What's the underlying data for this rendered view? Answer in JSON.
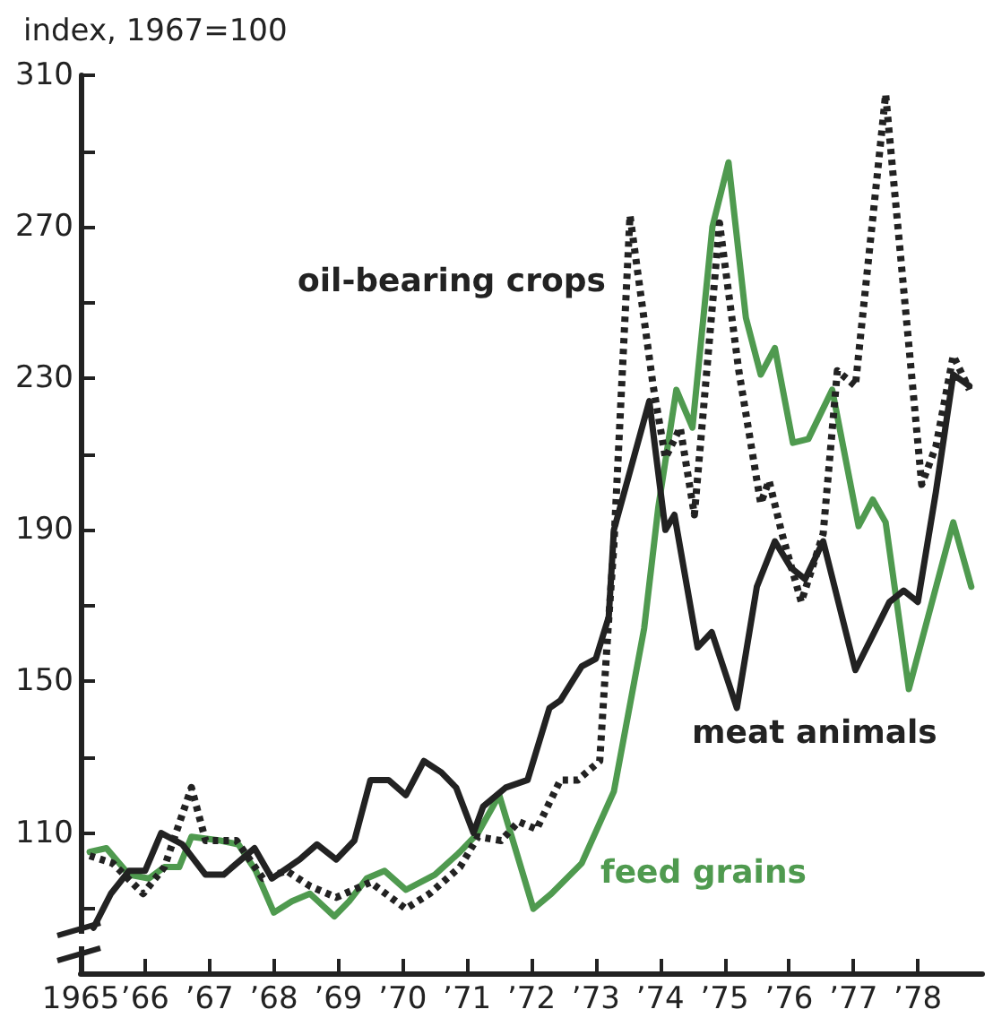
{
  "chart_data": {
    "type": "line",
    "ylabel": "index, 1967=100",
    "xlim": [
      1965,
      1979
    ],
    "xticks": [
      1965,
      {
        "value": 1966,
        "label": "’66"
      },
      {
        "value": 1967,
        "label": "’67"
      },
      {
        "value": 1968,
        "label": "’68"
      },
      {
        "value": 1969,
        "label": "’69"
      },
      {
        "value": 1970,
        "label": "’70"
      },
      {
        "value": 1971,
        "label": "’71"
      },
      {
        "value": 1972,
        "label": "’72"
      },
      {
        "value": 1973,
        "label": "’73"
      },
      {
        "value": 1974,
        "label": "’74"
      },
      {
        "value": 1975,
        "label": "’75"
      },
      {
        "value": 1976,
        "label": "’76"
      },
      {
        "value": 1977,
        "label": "’77"
      },
      {
        "value": 1978,
        "label": "’78"
      }
    ],
    "ylim": [
      73,
      310
    ],
    "yticks": [
      {
        "value": 90,
        "label": null
      },
      110,
      {
        "value": 130,
        "label": null
      },
      150,
      {
        "value": 170,
        "label": null
      },
      190,
      {
        "value": 210,
        "label": null
      },
      230,
      {
        "value": 250,
        "label": null
      },
      270,
      {
        "value": 290,
        "label": null
      },
      310
    ],
    "grid": false,
    "legend": false,
    "marker": "none",
    "series": [
      {
        "name": "oil-bearing crops",
        "color": "#222222",
        "line_style": "dotted",
        "x": [
          1965.14,
          1965.5,
          1965.97,
          1966.3,
          1966.72,
          1966.94,
          1967.42,
          1967.83,
          1968.2,
          1968.56,
          1968.97,
          1969.5,
          1970.05,
          1970.42,
          1970.89,
          1971.17,
          1971.53,
          1971.8,
          1972.08,
          1972.45,
          1972.72,
          1973.06,
          1973.19,
          1973.28,
          1973.53,
          1973.89,
          1974.08,
          1974.31,
          1974.53,
          1974.92,
          1975.22,
          1975.56,
          1975.69,
          1975.89,
          1976.19,
          1976.53,
          1976.75,
          1977.03,
          1977.5,
          1978.06,
          1978.28,
          1978.55,
          1978.8
        ],
        "values": [
          104,
          102,
          94,
          101,
          122,
          108,
          108,
          98,
          100,
          96,
          93,
          97,
          90,
          94,
          101,
          109,
          108,
          113,
          111,
          124,
          124,
          129,
          164,
          186,
          273,
          228,
          209,
          217,
          194,
          271,
          232,
          197,
          203,
          189,
          171,
          189,
          232,
          228,
          305,
          202,
          212,
          236,
          227
        ]
      },
      {
        "name": "meat animals",
        "color": "#222222",
        "line_style": "solid",
        "x": [
          1965.2,
          1965.47,
          1965.75,
          1966.0,
          1966.25,
          1966.58,
          1966.94,
          1967.22,
          1967.7,
          1967.97,
          1968.4,
          1968.67,
          1968.97,
          1969.25,
          1969.5,
          1969.78,
          1970.05,
          1970.33,
          1970.6,
          1970.83,
          1971.1,
          1971.25,
          1971.6,
          1971.94,
          1972.28,
          1972.45,
          1972.78,
          1973.0,
          1973.2,
          1973.28,
          1973.83,
          1974.08,
          1974.22,
          1974.58,
          1974.8,
          1975.19,
          1975.5,
          1975.78,
          1976.03,
          1976.25,
          1976.53,
          1977.03,
          1977.56,
          1977.78,
          1978.0,
          1978.28,
          1978.55,
          1978.8
        ],
        "values": [
          85,
          94,
          100,
          100,
          110,
          107,
          99,
          99,
          106,
          98,
          103,
          107,
          103,
          108,
          124,
          124,
          120,
          129,
          126,
          122,
          110,
          117,
          122,
          124,
          143,
          145,
          154,
          156,
          167,
          190,
          224,
          190,
          194,
          159,
          163,
          143,
          175,
          187,
          180,
          177,
          187,
          153,
          171,
          174,
          171,
          200,
          231,
          228
        ]
      },
      {
        "name": "feed grains",
        "color": "#4f9a4f",
        "line_style": "solid",
        "x": [
          1965.14,
          1965.4,
          1965.75,
          1966.06,
          1966.3,
          1966.53,
          1966.72,
          1967.17,
          1967.45,
          1967.72,
          1968.0,
          1968.28,
          1968.56,
          1968.94,
          1969.17,
          1969.44,
          1969.72,
          1970.05,
          1970.5,
          1970.89,
          1971.17,
          1971.5,
          1972.03,
          1972.31,
          1972.78,
          1973.28,
          1973.75,
          1973.97,
          1974.25,
          1974.5,
          1974.81,
          1975.06,
          1975.33,
          1975.56,
          1975.78,
          1976.06,
          1976.3,
          1976.67,
          1977.08,
          1977.3,
          1977.5,
          1977.86,
          1978.55,
          1978.83
        ],
        "values": [
          105,
          106,
          99,
          98,
          101,
          101,
          109,
          108,
          107,
          100,
          89,
          92,
          94,
          88,
          92,
          98,
          100,
          95,
          99,
          105,
          110,
          120,
          90,
          94,
          102,
          121,
          164,
          196,
          227,
          217,
          270,
          287,
          246,
          231,
          238,
          213,
          214,
          227,
          191,
          198,
          192,
          148,
          192,
          175
        ]
      }
    ]
  }
}
